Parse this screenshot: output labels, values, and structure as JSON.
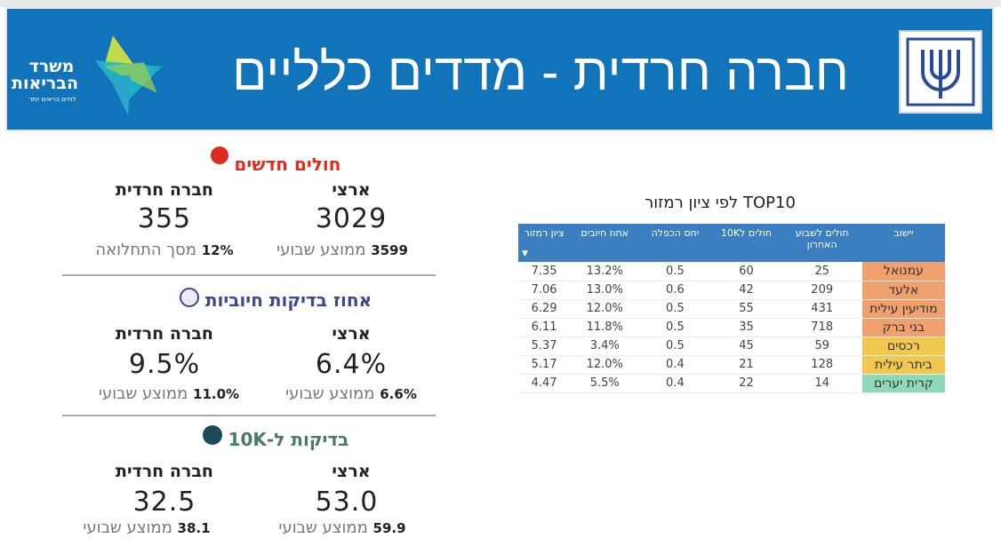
{
  "header": {
    "title": "חברה חרדית - מדדים כלליים",
    "logo_text": "משרד הבריאות",
    "logo_tagline": "לחיים בריאים יותר",
    "banner_color": "#1173b9"
  },
  "sections": [
    {
      "title": "חולים חדשים",
      "icon": "virus-icon",
      "color": "#e8291c",
      "national": {
        "label": "ארצי",
        "value": "3029",
        "sub_value": "3599",
        "sub_label": "ממוצע שבועי"
      },
      "haredi": {
        "label": "חברה חרדית",
        "value": "355",
        "sub_value": "12%",
        "sub_label": "מסך התחלואה"
      }
    },
    {
      "title": "אחוז בדיקות חיוביות",
      "icon": "test-tube-virus-icon",
      "color": "#3b4a8c",
      "national": {
        "label": "ארצי",
        "value": "6.4%",
        "sub_value": "6.6%",
        "sub_label": "ממוצע שבועי"
      },
      "haredi": {
        "label": "חברה חרדית",
        "value": "9.5%",
        "sub_value": "11.0%",
        "sub_label": "ממוצע שבועי"
      }
    },
    {
      "title": "בדיקות ל-10K",
      "icon": "test-tubes-icon",
      "color": "#4a7a6a",
      "national": {
        "label": "ארצי",
        "value": "53.0",
        "sub_value": "59.9",
        "sub_label": "ממוצע שבועי"
      },
      "haredi": {
        "label": "חברה חרדית",
        "value": "32.5",
        "sub_value": "38.1",
        "sub_label": "ממוצע שבועי"
      }
    }
  ],
  "table": {
    "title": "TOP10 לפי ציון רמזור",
    "columns": [
      "יישוב",
      "חולים לשבוע האחרון",
      "חולים ל10K",
      "יחס הכפלה",
      "אחוז חיובים",
      "ציון רמזור"
    ],
    "sort_icon": "sort-down-icon",
    "rows": [
      {
        "name": "עמנואל",
        "color": "#f0a06c",
        "cells": [
          "25",
          "60",
          "0.5",
          "13.2%",
          "7.35"
        ]
      },
      {
        "name": "אלעד",
        "color": "#f0a06c",
        "cells": [
          "209",
          "42",
          "0.6",
          "13.0%",
          "7.06"
        ]
      },
      {
        "name": "מודיעין עילית",
        "color": "#f0a06c",
        "cells": [
          "431",
          "55",
          "0.5",
          "12.0%",
          "6.29"
        ]
      },
      {
        "name": "בני ברק",
        "color": "#f0a06c",
        "cells": [
          "718",
          "35",
          "0.5",
          "11.8%",
          "6.11"
        ]
      },
      {
        "name": "רכסים",
        "color": "#f0c850",
        "cells": [
          "59",
          "45",
          "0.5",
          "3.4%",
          "5.37"
        ]
      },
      {
        "name": "ביתר עילית",
        "color": "#f0c850",
        "cells": [
          "128",
          "21",
          "0.4",
          "12.0%",
          "5.17"
        ]
      },
      {
        "name": "קרית יערים",
        "color": "#8ed9b9",
        "cells": [
          "14",
          "22",
          "0.4",
          "5.5%",
          "4.47"
        ]
      }
    ]
  }
}
